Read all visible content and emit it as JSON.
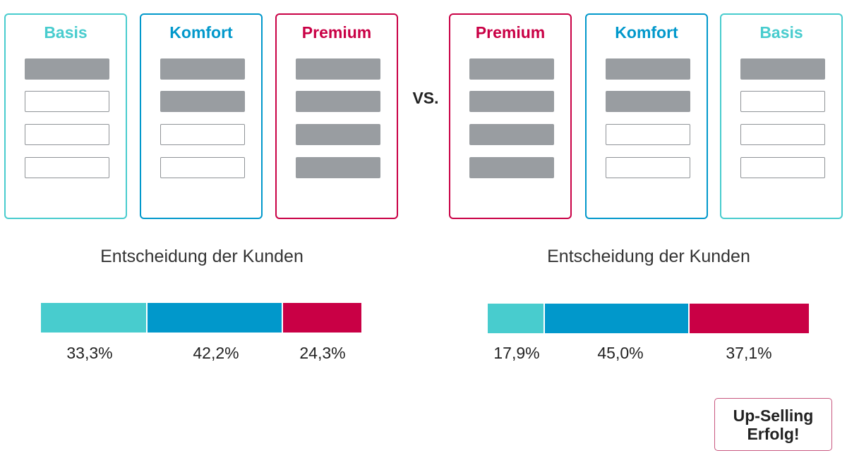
{
  "colors": {
    "basis": "#48ccce",
    "komfort": "#0198cb",
    "premium": "#c90045",
    "feature_filled": "#999da1"
  },
  "vs_label": "VS.",
  "left": {
    "tiers": [
      {
        "name": "Basis",
        "tier": "basis",
        "features": [
          true,
          false,
          false,
          false
        ]
      },
      {
        "name": "Komfort",
        "tier": "komfort",
        "features": [
          true,
          true,
          false,
          false
        ]
      },
      {
        "name": "Premium",
        "tier": "premium",
        "features": [
          true,
          true,
          true,
          true
        ]
      }
    ],
    "caption": "Entscheidung der Kunden",
    "shares": [
      {
        "tier": "basis",
        "value": 33.3,
        "label": "33,3%"
      },
      {
        "tier": "komfort",
        "value": 42.2,
        "label": "42,2%"
      },
      {
        "tier": "premium",
        "value": 24.3,
        "label": "24,3%"
      }
    ]
  },
  "right": {
    "tiers": [
      {
        "name": "Premium",
        "tier": "premium",
        "features": [
          true,
          true,
          true,
          true
        ]
      },
      {
        "name": "Komfort",
        "tier": "komfort",
        "features": [
          true,
          true,
          false,
          false
        ]
      },
      {
        "name": "Basis",
        "tier": "basis",
        "features": [
          true,
          false,
          false,
          false
        ]
      }
    ],
    "caption": "Entscheidung der Kunden",
    "shares": [
      {
        "tier": "basis",
        "value": 17.9,
        "label": "17,9%"
      },
      {
        "tier": "komfort",
        "value": 45.0,
        "label": "45,0%"
      },
      {
        "tier": "premium",
        "value": 37.1,
        "label": "37,1%"
      }
    ],
    "callout": {
      "line1": "Up-Selling",
      "line2": "Erfolg!"
    }
  }
}
